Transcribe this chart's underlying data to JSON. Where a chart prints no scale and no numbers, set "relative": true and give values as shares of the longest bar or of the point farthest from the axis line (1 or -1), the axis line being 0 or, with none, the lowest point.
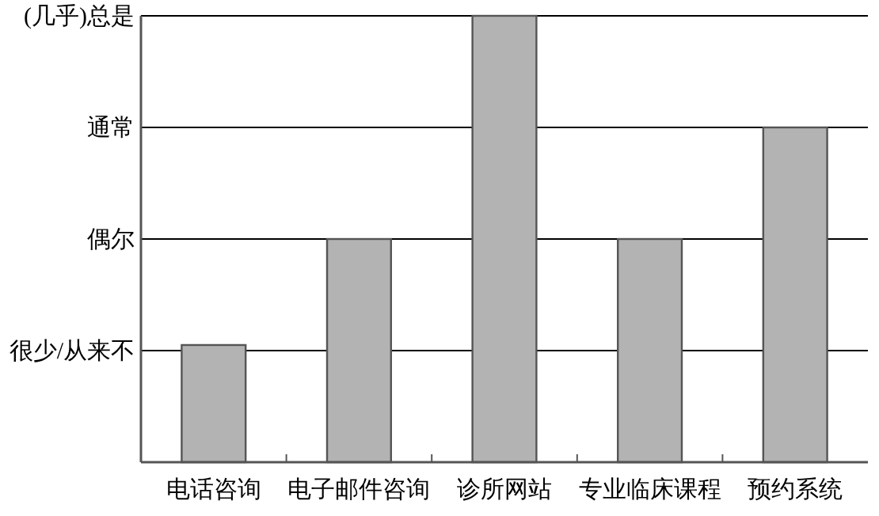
{
  "chart_data": {
    "type": "bar",
    "categories": [
      "电话咨询",
      "电子邮件咨询",
      "诊所网站",
      "专业临床课程",
      "预约系统"
    ],
    "values": [
      0.2625,
      0.5,
      1,
      0.5,
      0.75
    ],
    "relative": true,
    "color": "#b3b3b3",
    "ref_lines": [
      {
        "axis": "y",
        "value": 0.25,
        "label": "很少/从来不",
        "color": "#000000"
      },
      {
        "axis": "y",
        "value": 0.5,
        "label": "偶尔",
        "color": "#000000"
      },
      {
        "axis": "y",
        "value": 0.75,
        "label": "通常",
        "color": "#000000"
      },
      {
        "axis": "y",
        "value": 1,
        "label": "(几乎)总是",
        "color": "#000000"
      }
    ]
  }
}
